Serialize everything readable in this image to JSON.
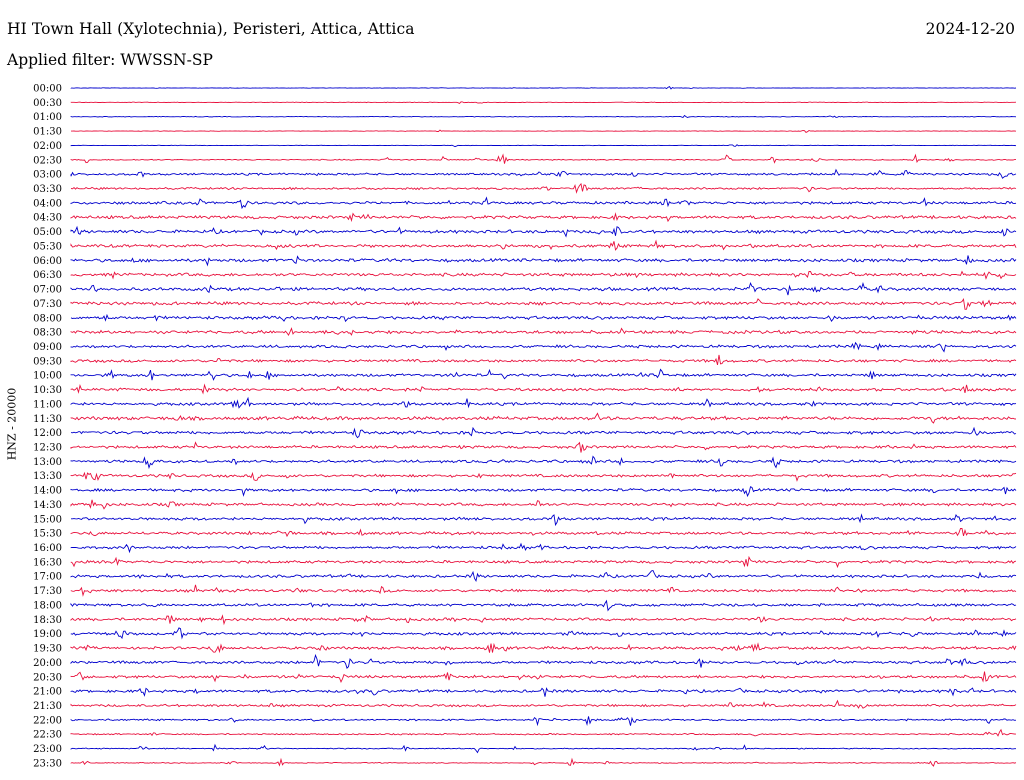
{
  "header": {
    "station": "HI Town Hall (Xylotechnia), Peristeri, Attica, Attica",
    "date": "2024-12-20",
    "filter": "Applied filter: WWSSN-SP"
  },
  "chart_data": {
    "type": "line",
    "ylabel": "HNZ - 20000",
    "tick_labels": [
      "00:00",
      "00:30",
      "01:00",
      "01:30",
      "02:00",
      "02:30",
      "03:00",
      "03:30",
      "04:00",
      "04:30",
      "05:00",
      "05:30",
      "06:00",
      "06:30",
      "07:00",
      "07:30",
      "08:00",
      "08:30",
      "09:00",
      "09:30",
      "10:00",
      "10:30",
      "11:00",
      "11:30",
      "12:00",
      "12:30",
      "13:00",
      "13:30",
      "14:00",
      "14:30",
      "15:00",
      "15:30",
      "16:00",
      "16:30",
      "17:00",
      "17:30",
      "18:00",
      "18:30",
      "19:00",
      "19:30",
      "20:00",
      "20:30",
      "21:00",
      "21:30",
      "22:00",
      "22:30",
      "23:00",
      "23:30"
    ],
    "trace_colors": [
      "#0000cc",
      "#e8113d"
    ],
    "noise_level": [
      0.3,
      0.3,
      0.3,
      0.3,
      0.3,
      0.6,
      1.2,
      1.2,
      1.6,
      1.8,
      1.8,
      1.8,
      1.8,
      1.8,
      1.8,
      1.8,
      1.8,
      1.8,
      1.6,
      1.6,
      1.6,
      1.6,
      1.6,
      2.0,
      1.8,
      1.6,
      1.6,
      1.6,
      1.6,
      1.6,
      1.6,
      1.6,
      1.6,
      1.6,
      1.6,
      1.6,
      1.6,
      1.6,
      1.6,
      1.6,
      1.6,
      1.6,
      1.6,
      1.4,
      1.0,
      0.8,
      0.6,
      0.5
    ],
    "grid": false
  }
}
